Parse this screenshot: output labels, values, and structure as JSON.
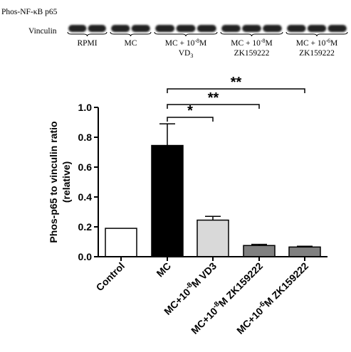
{
  "blot": {
    "row_labels": [
      "Phos-NF-κB p65",
      "Vinculin"
    ],
    "lane_groups": [
      {
        "line1": "RPMI",
        "line2": ""
      },
      {
        "line1": "MC",
        "line2": ""
      },
      {
        "line1": "MC + 10",
        "exp1": "-8",
        "line1b": "M",
        "line2": "VD",
        "sub2": "3"
      },
      {
        "line1": "MC + 10",
        "exp1": "-8",
        "line1b": "M",
        "line2": "ZK159222"
      },
      {
        "line1": "MC + 10",
        "exp1": "-6",
        "line1b": "M",
        "line2": "ZK159222"
      }
    ]
  },
  "chart_data": {
    "type": "bar",
    "categories": [
      "Control",
      "MC",
      "MC+10-8M VD3",
      "MC+10-8M ZK159222",
      "MC+10-6M ZK159222"
    ],
    "category_labels": [
      {
        "pre": "Control"
      },
      {
        "pre": "MC"
      },
      {
        "pre": "MC+10",
        "sup": "-8",
        "post": "M VD3"
      },
      {
        "pre": "MC+10",
        "sup": "-8",
        "post": "M ZK159222"
      },
      {
        "pre": "MC+10",
        "sup": "-6",
        "post": "M ZK159222"
      }
    ],
    "values": [
      0.19,
      0.745,
      0.245,
      0.075,
      0.065
    ],
    "errors": [
      0,
      0.145,
      0.025,
      0.008,
      0.005
    ],
    "bar_colors": [
      "#ffffff",
      "#000000",
      "#d9d9d9",
      "#808080",
      "#808080"
    ],
    "ylabel": "Phos-p65 to vinculin ratio",
    "ylabel2": "(relative)",
    "ylim": [
      0,
      1.0
    ],
    "yticks": [
      "0.0",
      "0.2",
      "0.4",
      "0.6",
      "0.8",
      "1.0"
    ],
    "significance": [
      {
        "from": "MC",
        "to": "MC+10-8M VD3",
        "label": "*"
      },
      {
        "from": "MC",
        "to": "MC+10-8M ZK159222",
        "label": "**"
      },
      {
        "from": "MC",
        "to": "MC+10-6M ZK159222",
        "label": "**"
      }
    ]
  }
}
